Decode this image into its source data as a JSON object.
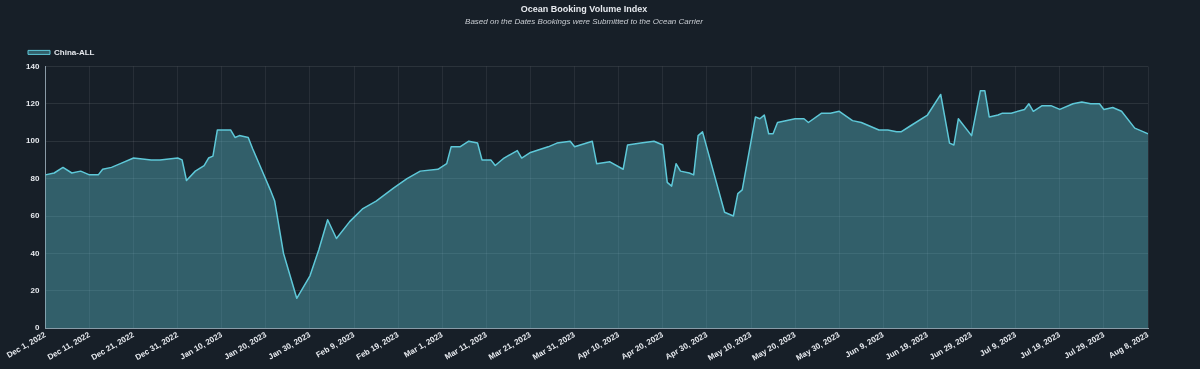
{
  "chart_data": {
    "type": "area",
    "title": "Ocean Booking Volume Index",
    "subtitle": "Based on the Dates Bookings were Submitted to the Ocean Carrier",
    "x": [
      "2022-12-01",
      "2022-12-03",
      "2022-12-05",
      "2022-12-07",
      "2022-12-09",
      "2022-12-11",
      "2022-12-13",
      "2022-12-14",
      "2022-12-16",
      "2022-12-18",
      "2022-12-21",
      "2022-12-25",
      "2022-12-27",
      "2022-12-31",
      "2023-01-01",
      "2023-01-02",
      "2023-01-04",
      "2023-01-06",
      "2023-01-07",
      "2023-01-08",
      "2023-01-09",
      "2023-01-12",
      "2023-01-13",
      "2023-01-14",
      "2023-01-16",
      "2023-01-17",
      "2023-01-19",
      "2023-01-21",
      "2023-01-22",
      "2023-01-24",
      "2023-01-27",
      "2023-01-30",
      "2023-02-01",
      "2023-02-03",
      "2023-02-05",
      "2023-02-08",
      "2023-02-11",
      "2023-02-14",
      "2023-02-18",
      "2023-02-21",
      "2023-02-24",
      "2023-02-28",
      "2023-03-02",
      "2023-03-03",
      "2023-03-05",
      "2023-03-07",
      "2023-03-09",
      "2023-03-10",
      "2023-03-12",
      "2023-03-13",
      "2023-03-15",
      "2023-03-18",
      "2023-03-19",
      "2023-03-21",
      "2023-03-25",
      "2023-03-27",
      "2023-03-30",
      "2023-03-31",
      "2023-04-04",
      "2023-04-05",
      "2023-04-08",
      "2023-04-11",
      "2023-04-12",
      "2023-04-15",
      "2023-04-18",
      "2023-04-20",
      "2023-04-21",
      "2023-04-22",
      "2023-04-23",
      "2023-04-24",
      "2023-04-26",
      "2023-04-27",
      "2023-04-28",
      "2023-04-29",
      "2023-05-04",
      "2023-05-06",
      "2023-05-07",
      "2023-05-08",
      "2023-05-11",
      "2023-05-12",
      "2023-05-13",
      "2023-05-14",
      "2023-05-15",
      "2023-05-16",
      "2023-05-20",
      "2023-05-22",
      "2023-05-23",
      "2023-05-26",
      "2023-05-28",
      "2023-05-30",
      "2023-06-02",
      "2023-06-04",
      "2023-06-08",
      "2023-06-10",
      "2023-06-12",
      "2023-06-13",
      "2023-06-15",
      "2023-06-19",
      "2023-06-22",
      "2023-06-24",
      "2023-06-25",
      "2023-06-26",
      "2023-06-29",
      "2023-07-01",
      "2023-07-02",
      "2023-07-03",
      "2023-07-05",
      "2023-07-06",
      "2023-07-08",
      "2023-07-11",
      "2023-07-12",
      "2023-07-13",
      "2023-07-15",
      "2023-07-17",
      "2023-07-19",
      "2023-07-22",
      "2023-07-24",
      "2023-07-26",
      "2023-07-28",
      "2023-07-29",
      "2023-07-31",
      "2023-08-02",
      "2023-08-05",
      "2023-08-07",
      "2023-08-08"
    ],
    "series": [
      {
        "name": "China-ALL",
        "color": "#5ec8d8",
        "values": [
          82,
          83,
          86,
          83,
          84,
          82,
          82,
          85,
          86,
          88,
          91,
          90,
          90,
          91,
          90,
          79,
          84,
          87,
          91,
          92,
          106,
          106,
          102,
          103,
          102,
          96,
          85,
          74,
          68,
          40,
          16,
          28,
          42,
          58,
          48,
          57,
          64,
          68,
          75,
          80,
          84,
          85,
          88,
          97,
          97,
          100,
          99,
          90,
          90,
          87,
          91,
          95,
          91,
          94,
          97,
          99,
          100,
          97,
          100,
          88,
          89,
          85,
          98,
          99,
          100,
          98,
          78,
          76,
          88,
          84,
          83,
          82,
          103,
          105,
          62,
          60,
          72,
          74,
          113,
          112,
          114,
          104,
          104,
          110,
          112,
          112,
          110,
          115,
          115,
          116,
          111,
          110,
          106,
          106,
          105,
          105,
          108,
          114,
          125,
          99,
          98,
          112,
          103,
          127,
          127,
          113,
          114,
          115,
          115,
          117,
          120,
          116,
          119,
          119,
          117,
          120,
          121,
          120,
          120,
          117,
          118,
          116,
          107,
          105,
          104
        ]
      }
    ],
    "xlim": [
      "2022-12-01",
      "2023-08-08"
    ],
    "xticks": [
      {
        "value": "2022-12-01",
        "label": "Dec 1, 2022"
      },
      {
        "value": "2022-12-11",
        "label": "Dec 11, 2022"
      },
      {
        "value": "2022-12-21",
        "label": "Dec 21, 2022"
      },
      {
        "value": "2022-12-31",
        "label": "Dec 31, 2022"
      },
      {
        "value": "2023-01-10",
        "label": "Jan 10, 2023"
      },
      {
        "value": "2023-01-20",
        "label": "Jan 20, 2023"
      },
      {
        "value": "2023-01-30",
        "label": "Jan 30, 2023"
      },
      {
        "value": "2023-02-09",
        "label": "Feb 9, 2023"
      },
      {
        "value": "2023-02-19",
        "label": "Feb 19, 2023"
      },
      {
        "value": "2023-03-01",
        "label": "Mar 1, 2023"
      },
      {
        "value": "2023-03-11",
        "label": "Mar 11, 2023"
      },
      {
        "value": "2023-03-21",
        "label": "Mar 21, 2023"
      },
      {
        "value": "2023-03-31",
        "label": "Mar 31, 2023"
      },
      {
        "value": "2023-04-10",
        "label": "Apr 10, 2023"
      },
      {
        "value": "2023-04-20",
        "label": "Apr 20, 2023"
      },
      {
        "value": "2023-04-30",
        "label": "Apr 30, 2023"
      },
      {
        "value": "2023-05-10",
        "label": "May 10, 2023"
      },
      {
        "value": "2023-05-20",
        "label": "May 20, 2023"
      },
      {
        "value": "2023-05-30",
        "label": "May 30, 2023"
      },
      {
        "value": "2023-06-09",
        "label": "Jun 9, 2023"
      },
      {
        "value": "2023-06-19",
        "label": "Jun 19, 2023"
      },
      {
        "value": "2023-06-29",
        "label": "Jun 29, 2023"
      },
      {
        "value": "2023-07-09",
        "label": "Jul 9, 2023"
      },
      {
        "value": "2023-07-19",
        "label": "Jul 19, 2023"
      },
      {
        "value": "2023-07-29",
        "label": "Jul 29, 2023"
      },
      {
        "value": "2023-08-08",
        "label": "Aug 8, 2023"
      }
    ],
    "ylim": [
      0,
      140
    ],
    "yticks": [
      0,
      20,
      40,
      60,
      80,
      100,
      120,
      140
    ],
    "grid": true,
    "legend": "top left",
    "marker": "none",
    "line_style": "solid"
  }
}
